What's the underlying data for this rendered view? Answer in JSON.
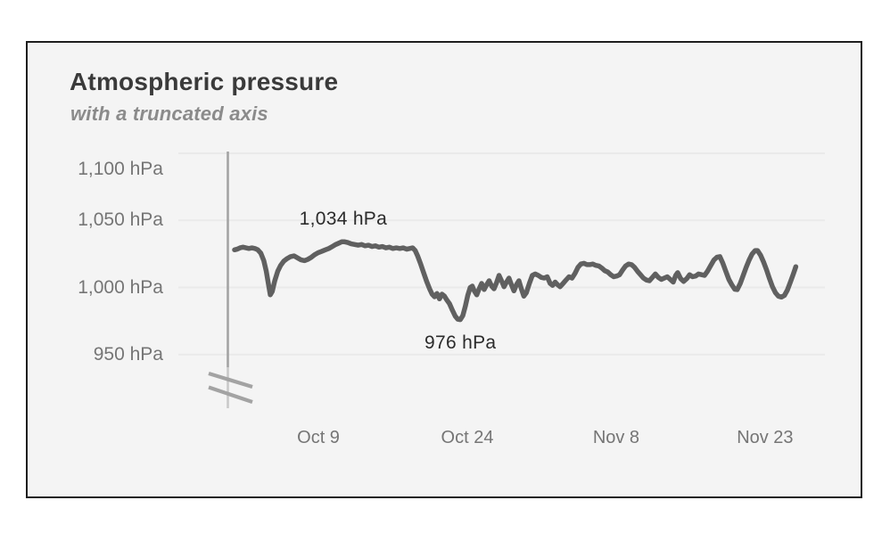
{
  "header": {
    "title": "Atmospheric pressure",
    "subtitle": "with a truncated axis"
  },
  "colors": {
    "page_background": "#ffffff",
    "card_background": "#f4f4f4",
    "card_border": "#1e1e1e",
    "line": "#606060",
    "gridline": "#eaeaea",
    "axis_line": "#a3a3a3",
    "axis_line_faded": "#c9c9c9",
    "axis_label": "#757575",
    "annotation_text": "#2b2b2b",
    "title_text": "#3a3a3a",
    "subtitle_text": "#8b8b8b"
  },
  "chart_data": {
    "type": "line",
    "title": "Atmospheric pressure",
    "subtitle": "with a truncated axis",
    "x_unit": "days since Oct 1",
    "y_unit": "hPa",
    "grid": "horizontal-only",
    "legend_position": "none",
    "y_axis": {
      "truncated": true,
      "break_symbol": "double-slash",
      "shown_range": [
        950,
        1100
      ],
      "ticks": [
        {
          "value": 1100,
          "label": "1,100 hPa"
        },
        {
          "value": 1050,
          "label": "1,050 hPa"
        },
        {
          "value": 1000,
          "label": "1,000 hPa"
        },
        {
          "value": 950,
          "label": "950 hPa"
        }
      ]
    },
    "x_axis": {
      "ticks": [
        {
          "day": 8,
          "label": "Oct 9"
        },
        {
          "day": 23,
          "label": "Oct 24"
        },
        {
          "day": 38,
          "label": "Nov 8"
        },
        {
          "day": 53,
          "label": "Nov 23"
        }
      ]
    },
    "annotations": [
      {
        "label": "1,034 hPa",
        "day": 10.5,
        "value": 1034,
        "placement": "above"
      },
      {
        "label": "976 hPa",
        "day": 22.3,
        "value": 976,
        "placement": "below"
      }
    ],
    "series": [
      {
        "name": "pressure",
        "points": [
          [
            -0.45,
            1028
          ],
          [
            -0.2,
            1028.5
          ],
          [
            0.1,
            1029.5
          ],
          [
            0.4,
            1030
          ],
          [
            0.7,
            1029.5
          ],
          [
            1.0,
            1029
          ],
          [
            1.3,
            1029.5
          ],
          [
            1.6,
            1029
          ],
          [
            1.9,
            1028
          ],
          [
            2.2,
            1025.5
          ],
          [
            2.5,
            1020
          ],
          [
            2.75,
            1012
          ],
          [
            3.0,
            1001
          ],
          [
            3.15,
            994.5
          ],
          [
            3.35,
            997
          ],
          [
            3.6,
            1005
          ],
          [
            3.9,
            1012
          ],
          [
            4.2,
            1016.5
          ],
          [
            4.5,
            1019.5
          ],
          [
            4.85,
            1021.5
          ],
          [
            5.2,
            1023
          ],
          [
            5.55,
            1023.5
          ],
          [
            5.9,
            1022
          ],
          [
            6.25,
            1020.5
          ],
          [
            6.6,
            1020
          ],
          [
            6.95,
            1021
          ],
          [
            7.3,
            1022.5
          ],
          [
            7.65,
            1024.5
          ],
          [
            8.0,
            1026
          ],
          [
            8.35,
            1027
          ],
          [
            8.7,
            1028
          ],
          [
            9.05,
            1029
          ],
          [
            9.4,
            1030.5
          ],
          [
            9.75,
            1032
          ],
          [
            10.05,
            1033
          ],
          [
            10.35,
            1034
          ],
          [
            10.65,
            1034
          ],
          [
            10.95,
            1033.5
          ],
          [
            11.3,
            1032.5
          ],
          [
            11.65,
            1032
          ],
          [
            12.0,
            1031.5
          ],
          [
            12.35,
            1032
          ],
          [
            12.7,
            1031
          ],
          [
            13.05,
            1031.5
          ],
          [
            13.4,
            1030.5
          ],
          [
            13.75,
            1031
          ],
          [
            14.1,
            1030
          ],
          [
            14.45,
            1030.5
          ],
          [
            14.8,
            1029.5
          ],
          [
            15.15,
            1030
          ],
          [
            15.5,
            1029
          ],
          [
            15.85,
            1029.5
          ],
          [
            16.2,
            1029
          ],
          [
            16.55,
            1029.5
          ],
          [
            16.9,
            1028.5
          ],
          [
            17.2,
            1029
          ],
          [
            17.5,
            1029.5
          ],
          [
            17.75,
            1027.5
          ],
          [
            18.0,
            1023.5
          ],
          [
            18.3,
            1017.5
          ],
          [
            18.6,
            1011
          ],
          [
            18.9,
            1004.5
          ],
          [
            19.2,
            999
          ],
          [
            19.45,
            995
          ],
          [
            19.7,
            993
          ],
          [
            19.95,
            995.5
          ],
          [
            20.2,
            991.5
          ],
          [
            20.45,
            995
          ],
          [
            20.7,
            993.5
          ],
          [
            20.95,
            990.5
          ],
          [
            21.2,
            988
          ],
          [
            21.5,
            983
          ],
          [
            21.8,
            978.5
          ],
          [
            22.05,
            976.3
          ],
          [
            22.3,
            976
          ],
          [
            22.55,
            979
          ],
          [
            22.8,
            986
          ],
          [
            23.05,
            994
          ],
          [
            23.3,
            1000
          ],
          [
            23.5,
            1001
          ],
          [
            23.7,
            997.5
          ],
          [
            23.95,
            994.5
          ],
          [
            24.2,
            999
          ],
          [
            24.45,
            1003
          ],
          [
            24.7,
            998.5
          ],
          [
            24.95,
            1002
          ],
          [
            25.2,
            1005
          ],
          [
            25.45,
            1001
          ],
          [
            25.7,
            999
          ],
          [
            25.95,
            1003.5
          ],
          [
            26.2,
            1009
          ],
          [
            26.45,
            1005
          ],
          [
            26.7,
            1000.5
          ],
          [
            26.95,
            1004
          ],
          [
            27.2,
            1007
          ],
          [
            27.45,
            1002
          ],
          [
            27.7,
            997.5
          ],
          [
            27.95,
            1002
          ],
          [
            28.2,
            1005
          ],
          [
            28.45,
            999
          ],
          [
            28.7,
            993.5
          ],
          [
            28.95,
            996
          ],
          [
            29.25,
            1003
          ],
          [
            29.55,
            1009
          ],
          [
            29.85,
            1010
          ],
          [
            30.15,
            1009
          ],
          [
            30.45,
            1007.5
          ],
          [
            30.75,
            1007
          ],
          [
            31.05,
            1008
          ],
          [
            31.35,
            1003
          ],
          [
            31.6,
            1001.5
          ],
          [
            31.85,
            1004
          ],
          [
            32.1,
            1002
          ],
          [
            32.35,
            1000.5
          ],
          [
            32.65,
            1003
          ],
          [
            32.95,
            1005.5
          ],
          [
            33.25,
            1008
          ],
          [
            33.55,
            1007
          ],
          [
            33.85,
            1010.5
          ],
          [
            34.15,
            1015
          ],
          [
            34.45,
            1017.5
          ],
          [
            34.75,
            1018
          ],
          [
            35.05,
            1017
          ],
          [
            35.35,
            1017
          ],
          [
            35.65,
            1017.5
          ],
          [
            35.95,
            1016.5
          ],
          [
            36.25,
            1016
          ],
          [
            36.55,
            1014.5
          ],
          [
            36.85,
            1012.5
          ],
          [
            37.15,
            1011.5
          ],
          [
            37.45,
            1009.5
          ],
          [
            37.75,
            1008
          ],
          [
            38.05,
            1008.5
          ],
          [
            38.35,
            1009.5
          ],
          [
            38.65,
            1013
          ],
          [
            38.95,
            1016
          ],
          [
            39.25,
            1017.5
          ],
          [
            39.55,
            1017
          ],
          [
            39.85,
            1015
          ],
          [
            40.15,
            1012
          ],
          [
            40.45,
            1009.5
          ],
          [
            40.75,
            1007
          ],
          [
            41.05,
            1005.5
          ],
          [
            41.35,
            1005
          ],
          [
            41.65,
            1007.5
          ],
          [
            41.95,
            1010
          ],
          [
            42.25,
            1007.5
          ],
          [
            42.55,
            1006
          ],
          [
            42.85,
            1007
          ],
          [
            43.15,
            1008
          ],
          [
            43.45,
            1006
          ],
          [
            43.75,
            1004
          ],
          [
            44.0,
            1009
          ],
          [
            44.2,
            1011
          ],
          [
            44.5,
            1006.5
          ],
          [
            44.8,
            1004.5
          ],
          [
            45.1,
            1006.5
          ],
          [
            45.4,
            1009.5
          ],
          [
            45.7,
            1008
          ],
          [
            46.0,
            1008.5
          ],
          [
            46.3,
            1010
          ],
          [
            46.6,
            1009.5
          ],
          [
            46.9,
            1009
          ],
          [
            47.2,
            1012
          ],
          [
            47.5,
            1016
          ],
          [
            47.85,
            1020.5
          ],
          [
            48.15,
            1022.5
          ],
          [
            48.45,
            1023
          ],
          [
            48.75,
            1018
          ],
          [
            49.05,
            1012
          ],
          [
            49.35,
            1006
          ],
          [
            49.65,
            1002
          ],
          [
            49.95,
            998.7
          ],
          [
            50.2,
            998.4
          ],
          [
            50.5,
            1003
          ],
          [
            50.8,
            1009
          ],
          [
            51.1,
            1015
          ],
          [
            51.4,
            1020.5
          ],
          [
            51.7,
            1025
          ],
          [
            52.0,
            1027.5
          ],
          [
            52.25,
            1027.5
          ],
          [
            52.55,
            1024
          ],
          [
            52.85,
            1019
          ],
          [
            53.15,
            1013
          ],
          [
            53.45,
            1006.5
          ],
          [
            53.75,
            1000.5
          ],
          [
            54.05,
            996
          ],
          [
            54.35,
            993.5
          ],
          [
            54.65,
            992.8
          ],
          [
            54.95,
            994
          ],
          [
            55.25,
            998
          ],
          [
            55.55,
            1004
          ],
          [
            55.85,
            1010
          ],
          [
            56.1,
            1015.5
          ]
        ]
      }
    ]
  }
}
